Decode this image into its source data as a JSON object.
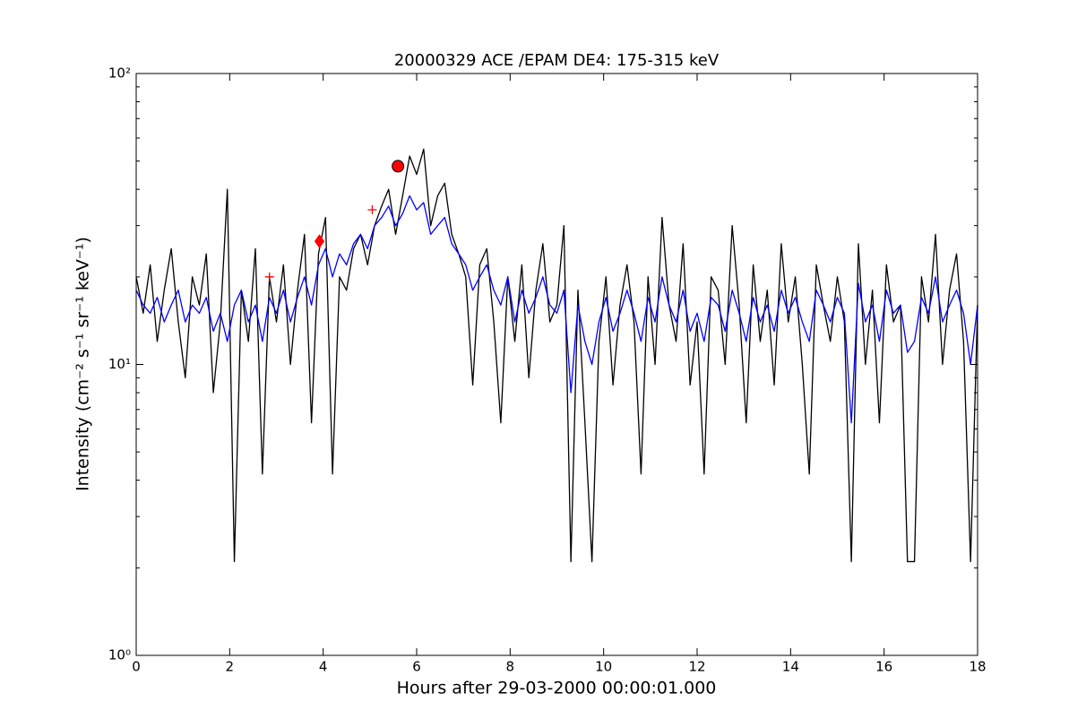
{
  "chart_data": {
    "type": "line",
    "title": "20000329 ACE /EPAM DE4: 175-315 keV",
    "xlabel": "Hours after 29-03-2000 00:00:01.000",
    "ylabel": "Intensity (cm⁻² s⁻¹ sr⁻¹ keV⁻¹)",
    "xlim": [
      0,
      18
    ],
    "ylim": [
      1,
      100
    ],
    "yscale": "log",
    "xticks": [
      0,
      2,
      4,
      6,
      8,
      10,
      12,
      14,
      16,
      18
    ],
    "yticks": [
      {
        "value": 1,
        "label": "10⁰"
      },
      {
        "value": 10,
        "label": "10¹"
      },
      {
        "value": 100,
        "label": "10²"
      }
    ],
    "yminorticks": [
      2,
      3,
      4,
      5,
      6,
      7,
      8,
      9,
      20,
      30,
      40,
      50,
      60,
      70,
      80,
      90
    ],
    "x": [
      0,
      0.15,
      0.3,
      0.45,
      0.6,
      0.75,
      0.9,
      1.05,
      1.2,
      1.35,
      1.5,
      1.65,
      1.8,
      1.95,
      2.1,
      2.25,
      2.4,
      2.55,
      2.7,
      2.85,
      3,
      3.15,
      3.3,
      3.45,
      3.6,
      3.75,
      3.9,
      4.05,
      4.2,
      4.35,
      4.5,
      4.65,
      4.8,
      4.95,
      5.1,
      5.25,
      5.4,
      5.55,
      5.7,
      5.85,
      6,
      6.15,
      6.3,
      6.45,
      6.6,
      6.75,
      6.9,
      7.05,
      7.2,
      7.35,
      7.5,
      7.65,
      7.8,
      7.95,
      8.1,
      8.25,
      8.4,
      8.55,
      8.7,
      8.85,
      9,
      9.15,
      9.3,
      9.45,
      9.6,
      9.75,
      9.9,
      10.05,
      10.2,
      10.35,
      10.5,
      10.65,
      10.8,
      10.95,
      11.1,
      11.25,
      11.4,
      11.55,
      11.7,
      11.85,
      12,
      12.15,
      12.3,
      12.45,
      12.6,
      12.75,
      12.9,
      13.05,
      13.2,
      13.35,
      13.5,
      13.65,
      13.8,
      13.95,
      14.1,
      14.25,
      14.4,
      14.55,
      14.7,
      14.85,
      15,
      15.15,
      15.3,
      15.45,
      15.6,
      15.75,
      15.9,
      16.05,
      16.2,
      16.35,
      16.5,
      16.65,
      16.8,
      16.95,
      17.1,
      17.25,
      17.4,
      17.55,
      17.7,
      17.85,
      18
    ],
    "series": [
      {
        "color": "#000000",
        "values": [
          20,
          15,
          22,
          12,
          18,
          25,
          14,
          9,
          20,
          16,
          24,
          8,
          14,
          40,
          2.1,
          18,
          12,
          25,
          4.2,
          20,
          14,
          22,
          10,
          18,
          28,
          6.3,
          24,
          32,
          4.2,
          20,
          18,
          25,
          28,
          22,
          30,
          35,
          40,
          28,
          38,
          52,
          45,
          55,
          30,
          38,
          42,
          28,
          24,
          20,
          8.5,
          22,
          25,
          14,
          6.3,
          20,
          12,
          22,
          9,
          18,
          26,
          14,
          16,
          30,
          2.1,
          18,
          6.3,
          2.1,
          12,
          20,
          8.5,
          16,
          22,
          14,
          4.2,
          20,
          10,
          32,
          16,
          12,
          26,
          8.5,
          14,
          4.2,
          20,
          18,
          10,
          30,
          16,
          6.3,
          22,
          12,
          18,
          8.5,
          26,
          14,
          20,
          10,
          4.2,
          22,
          16,
          12,
          20,
          14,
          2.1,
          26,
          10,
          18,
          6.3,
          22,
          14,
          16,
          2.1,
          2.1,
          20,
          14,
          28,
          10,
          18,
          24,
          12,
          2.1,
          16
        ]
      },
      {
        "color": "#0000ff",
        "values": [
          18,
          16,
          15,
          17,
          14,
          16,
          18,
          14,
          16,
          15,
          17,
          13,
          15,
          12,
          16,
          18,
          14,
          16,
          12,
          17,
          15,
          18,
          14,
          17,
          20,
          16,
          22,
          25,
          20,
          24,
          22,
          26,
          28,
          25,
          30,
          32,
          35,
          30,
          33,
          38,
          34,
          36,
          28,
          30,
          32,
          26,
          24,
          22,
          18,
          20,
          22,
          18,
          16,
          20,
          14,
          18,
          15,
          17,
          20,
          16,
          15,
          18,
          8,
          16,
          12,
          10,
          14,
          17,
          13,
          15,
          18,
          15,
          12,
          17,
          14,
          20,
          16,
          14,
          18,
          13,
          15,
          12,
          17,
          16,
          13,
          18,
          15,
          12,
          17,
          14,
          16,
          13,
          18,
          15,
          17,
          14,
          12,
          18,
          16,
          14,
          17,
          15,
          6.3,
          19,
          14,
          16,
          12,
          18,
          15,
          16,
          11,
          12,
          17,
          15,
          20,
          14,
          16,
          18,
          15,
          10,
          16
        ]
      }
    ],
    "points": [
      {
        "x": 5.6,
        "y": 48,
        "marker": "circle",
        "color": "#ff0000"
      },
      {
        "x": 3.92,
        "y": 26.5,
        "marker": "diamond",
        "color": "#ff0000"
      },
      {
        "x": 2.85,
        "y": 20,
        "marker": "plus",
        "color": "#ff0000"
      },
      {
        "x": 5.05,
        "y": 34,
        "marker": "plus",
        "color": "#ff0000"
      }
    ]
  }
}
